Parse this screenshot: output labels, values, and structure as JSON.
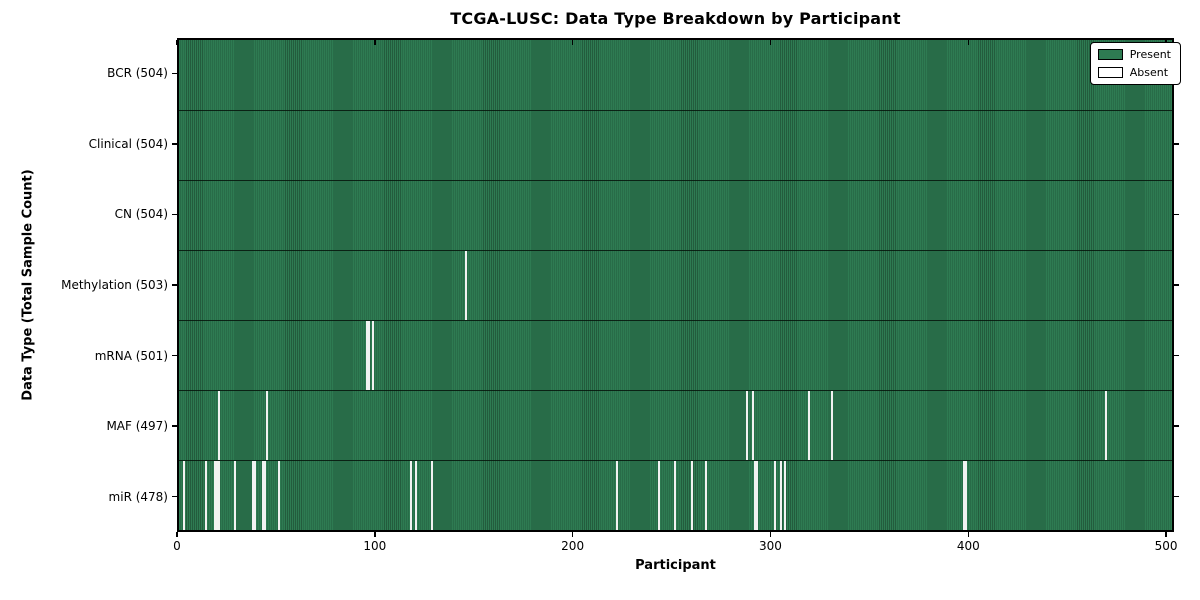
{
  "chart_data": {
    "type": "heatmap",
    "title": "TCGA-LUSC: Data Type Breakdown by Participant",
    "xlabel": "Participant",
    "ylabel": "Data Type (Total Sample Count)",
    "xlim": [
      0,
      504
    ],
    "x_ticks": [
      0,
      100,
      200,
      300,
      400,
      500
    ],
    "total_participants": 504,
    "grid": false,
    "legend_position": "upper right",
    "legend": [
      {
        "label": "Present",
        "color": "#2e7b52"
      },
      {
        "label": "Absent",
        "color": "#ffffff"
      }
    ],
    "colors": {
      "present": "#2e7b52",
      "present_stripe": "#235c3d",
      "absent": "#f2f2f2",
      "row_border": "#0a140d",
      "background": "#ffffff"
    },
    "rows": [
      {
        "label": "BCR (504)",
        "data_type": "BCR",
        "sample_count": 504,
        "absent_participants": []
      },
      {
        "label": "Clinical (504)",
        "data_type": "Clinical",
        "sample_count": 504,
        "absent_participants": []
      },
      {
        "label": "CN (504)",
        "data_type": "CN",
        "sample_count": 504,
        "absent_participants": []
      },
      {
        "label": "Methylation (503)",
        "data_type": "Methylation",
        "sample_count": 503,
        "absent_participants": [
          145
        ]
      },
      {
        "label": "mRNA (501)",
        "data_type": "mRNA",
        "sample_count": 501,
        "absent_participants": [
          95,
          96,
          98
        ]
      },
      {
        "label": "MAF (497)",
        "data_type": "MAF",
        "sample_count": 497,
        "absent_participants": [
          20,
          44,
          288,
          291,
          319,
          331,
          470
        ]
      },
      {
        "label": "miR (478)",
        "data_type": "miR",
        "sample_count": 478,
        "absent_participants": [
          2,
          13,
          18,
          19,
          20,
          28,
          37,
          38,
          42,
          43,
          50,
          117,
          120,
          128,
          222,
          243,
          251,
          260,
          267,
          292,
          293,
          302,
          305,
          307,
          398,
          399
        ]
      }
    ]
  }
}
